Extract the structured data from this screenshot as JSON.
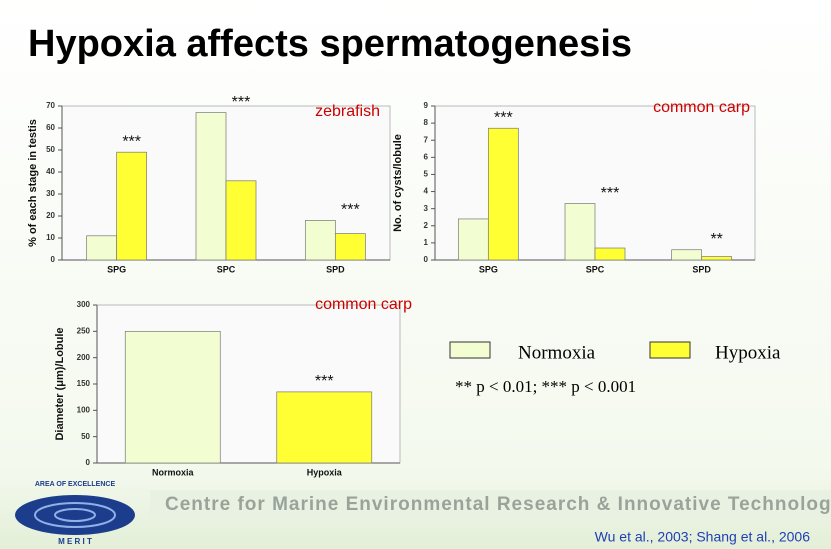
{
  "slide": {
    "title": "Hypoxia affects spermatogenesis",
    "banner": "Centre for Marine Environmental Research & Innovative Technology",
    "citation": "Wu et al., 2003; Shang et al., 2006",
    "logo_top": "AREA OF EXCELLENCE",
    "logo_bottom": "M E R I T",
    "significance_note": "** p < 0.01; *** p < 0.001"
  },
  "chart_data": [
    {
      "type": "bar",
      "title": "zebrafish",
      "y_label": "% of each stage in testis",
      "categories": [
        "SPG",
        "SPC",
        "SPD"
      ],
      "series": [
        {
          "name": "Normoxia",
          "color": "#f2fdd2",
          "values": [
            11,
            67,
            18
          ]
        },
        {
          "name": "Hypoxia",
          "color": "#ffff33",
          "values": [
            49,
            36,
            12
          ]
        }
      ],
      "annotations": [
        "***",
        "***",
        "***"
      ],
      "ylim": [
        0,
        70
      ],
      "yticks": [
        0,
        10,
        20,
        30,
        40,
        50,
        60,
        70
      ]
    },
    {
      "type": "bar",
      "title": "common carp",
      "y_label": "No. of cysts/lobule",
      "categories": [
        "SPG",
        "SPC",
        "SPD"
      ],
      "series": [
        {
          "name": "Normoxia",
          "color": "#f2fdd2",
          "values": [
            2.4,
            3.3,
            0.6
          ]
        },
        {
          "name": "Hypoxia",
          "color": "#ffff33",
          "values": [
            7.7,
            0.7,
            0.2
          ]
        }
      ],
      "annotations": [
        "***",
        "***",
        "**"
      ],
      "ylim": [
        0,
        9
      ],
      "yticks": [
        0,
        1,
        2,
        3,
        4,
        5,
        6,
        7,
        8,
        9
      ]
    },
    {
      "type": "bar",
      "title": "common carp",
      "y_label": "Diameter (μm)/Lobule",
      "categories": [
        "Normoxia",
        "Hypoxia"
      ],
      "values": [
        250,
        135
      ],
      "colors": [
        "#f2fdd2",
        "#ffff33"
      ],
      "annotations": [
        null,
        "***"
      ],
      "ylim": [
        0,
        300
      ],
      "yticks": [
        0,
        50,
        100,
        150,
        200,
        250,
        300
      ]
    }
  ]
}
